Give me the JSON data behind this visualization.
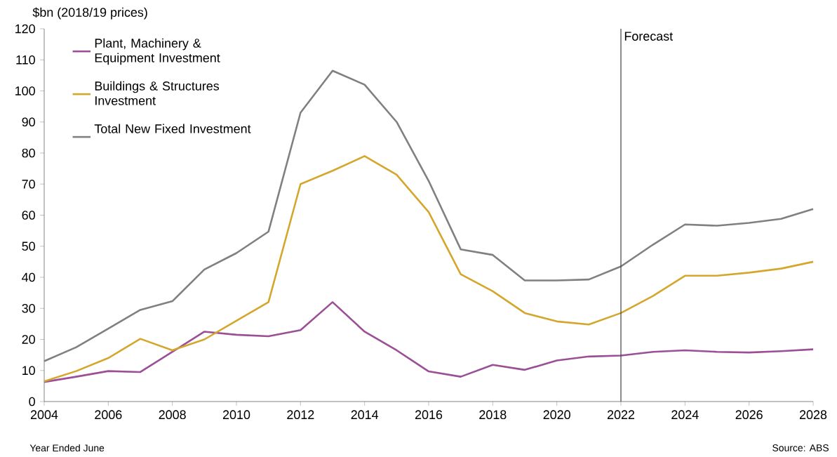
{
  "chart_data": {
    "type": "line",
    "ylabel": "$bn (2018/19 prices)",
    "x": [
      2004,
      2005,
      2006,
      2007,
      2008,
      2009,
      2010,
      2011,
      2012,
      2013,
      2014,
      2015,
      2016,
      2017,
      2018,
      2019,
      2020,
      2021,
      2022,
      2023,
      2024,
      2025,
      2026,
      2027,
      2028
    ],
    "series": [
      {
        "name": "Plant, Machinery & Equipment Investment",
        "color": "#9b4f96",
        "values": [
          6.3,
          8,
          9.8,
          9.5,
          16,
          22.5,
          21.5,
          21,
          23,
          32,
          22.5,
          16.5,
          9.7,
          8,
          11.8,
          10.2,
          13.2,
          14.5,
          14.8,
          16,
          16.5,
          16,
          15.8,
          16.2,
          16.8
        ]
      },
      {
        "name": "Buildings & Structures Investment",
        "color": "#d4a72c",
        "values": [
          6.5,
          9.8,
          14,
          20.2,
          16.5,
          20,
          26,
          32,
          70,
          74.3,
          79,
          73,
          61,
          41,
          35.5,
          28.5,
          25.8,
          24.8,
          28.5,
          34,
          40.5,
          40.5,
          41.5,
          42.8,
          45
        ]
      },
      {
        "name": "Total New Fixed Investment",
        "color": "#808080",
        "values": [
          13,
          17.5,
          23.5,
          29.5,
          32.3,
          42.5,
          47.8,
          54.7,
          93,
          106.5,
          102,
          90,
          71,
          49,
          47.2,
          39,
          39,
          39.3,
          43.5,
          50.5,
          57,
          56.6,
          57.5,
          58.8,
          62
        ]
      }
    ],
    "xlim": [
      2004,
      2028
    ],
    "xticks": [
      2004,
      2006,
      2008,
      2010,
      2012,
      2014,
      2016,
      2018,
      2020,
      2022,
      2024,
      2026,
      2028
    ],
    "ylim": [
      0,
      120
    ],
    "yticks": [
      0,
      10,
      20,
      30,
      40,
      50,
      60,
      70,
      80,
      90,
      100,
      110,
      120
    ],
    "ref_lines": [
      {
        "axis": "x",
        "value": 2022,
        "label": "Forecast",
        "color": "#404040"
      }
    ],
    "legend": "top left",
    "grid": false,
    "marker": "none",
    "line_style": "solid",
    "annotations": [
      "Year Ended June",
      "Source: ABS"
    ]
  }
}
